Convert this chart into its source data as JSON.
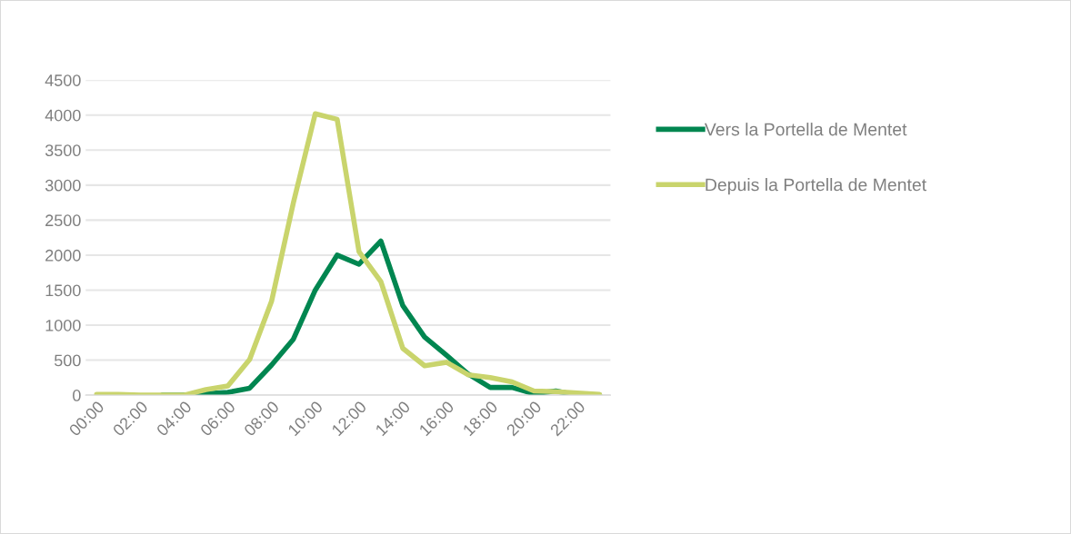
{
  "chart_data": {
    "type": "line",
    "categories": [
      "00:00",
      null,
      "02:00",
      null,
      "04:00",
      null,
      "06:00",
      null,
      "08:00",
      null,
      "10:00",
      null,
      "12:00",
      null,
      "14:00",
      null,
      "16:00",
      null,
      "18:00",
      null,
      "20:00",
      null,
      "22:00",
      null
    ],
    "series": [
      {
        "name": "Vers la Portella de Mentet",
        "color": "#008650",
        "values": [
          null,
          null,
          null,
          0,
          0,
          20,
          40,
          100,
          430,
          800,
          1500,
          2000,
          1870,
          2200,
          1280,
          830,
          570,
          300,
          110,
          110,
          20,
          60,
          0,
          0
        ]
      },
      {
        "name": "Depuis la Portella de Mentet",
        "color": "#c9d46c",
        "values": [
          10,
          10,
          0,
          0,
          0,
          80,
          130,
          510,
          1340,
          2750,
          4020,
          3940,
          2050,
          1620,
          670,
          420,
          470,
          290,
          250,
          190,
          60,
          50,
          30,
          10
        ]
      }
    ],
    "ylim": [
      0,
      4500
    ],
    "yticks": [
      0,
      500,
      1000,
      1500,
      2000,
      2500,
      3000,
      3500,
      4000,
      4500
    ],
    "grid": "y",
    "legend": "right",
    "marker": "none",
    "line_style": "solid"
  }
}
